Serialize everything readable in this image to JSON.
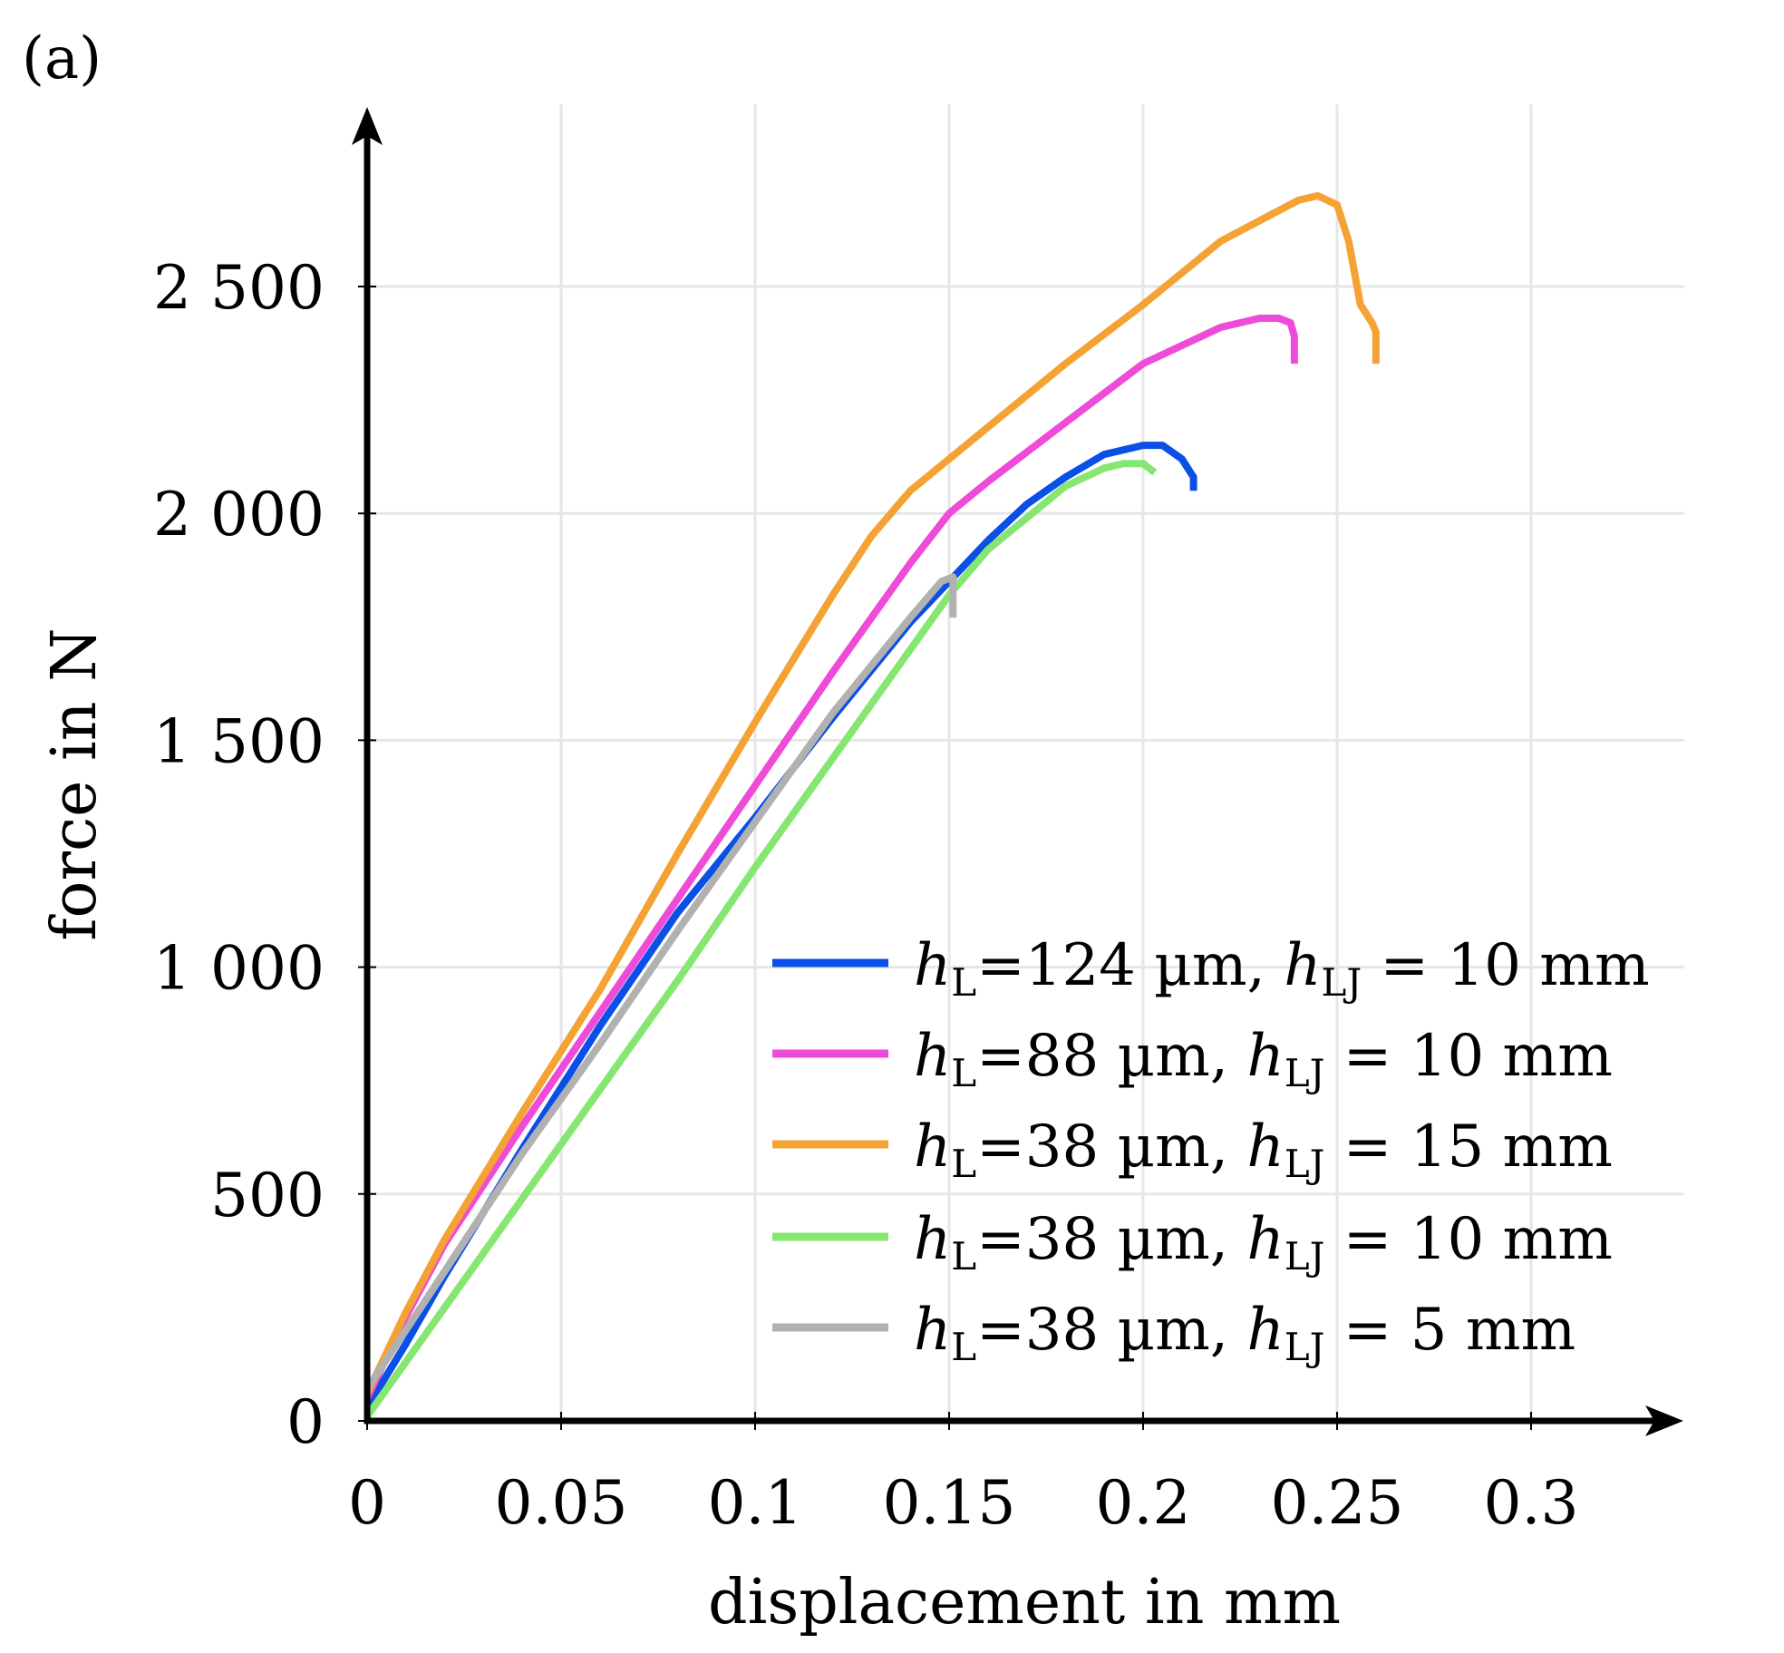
{
  "chart_data": {
    "type": "line",
    "panel_label": "(a)",
    "xlabel": "displacement in mm",
    "ylabel": "force in N",
    "xlim": [
      0,
      0.34
    ],
    "ylim": [
      0,
      2800
    ],
    "x_ticks": [
      0,
      0.05,
      0.1,
      0.15,
      0.2,
      0.25,
      0.3
    ],
    "x_tick_labels": [
      "0",
      "0.05",
      "0.1",
      "0.15",
      "0.2",
      "0.25",
      "0.3"
    ],
    "y_ticks": [
      0,
      500,
      1000,
      1500,
      2000,
      2500
    ],
    "y_tick_labels": [
      "0",
      "500",
      "1 000",
      "1 500",
      "2 000",
      "2 500"
    ],
    "grid": true,
    "legend_position": "lower-right",
    "series": [
      {
        "name": "h_L=124 µm, h_LJ = 10 mm",
        "legend": {
          "h": "h",
          "sub1": "L",
          "mid": "=124 µm, ",
          "h2": "h",
          "sub2": "LJ",
          "tail": " = 10 mm"
        },
        "color": "#0a4fe6",
        "x": [
          0,
          0.01,
          0.02,
          0.04,
          0.06,
          0.08,
          0.1,
          0.12,
          0.14,
          0.15,
          0.16,
          0.17,
          0.18,
          0.19,
          0.2,
          0.205,
          0.21,
          0.213,
          0.213
        ],
        "y": [
          30,
          170,
          320,
          600,
          870,
          1120,
          1330,
          1550,
          1760,
          1850,
          1940,
          2020,
          2080,
          2130,
          2150,
          2150,
          2120,
          2080,
          2050
        ]
      },
      {
        "name": "h_L=88 µm, h_LJ = 10 mm",
        "legend": {
          "h": "h",
          "sub1": "L",
          "mid": "=88 µm, ",
          "h2": "h",
          "sub2": "LJ",
          "tail": " = 10 mm"
        },
        "color": "#ee4bd8",
        "x": [
          0,
          0.01,
          0.02,
          0.04,
          0.06,
          0.08,
          0.1,
          0.12,
          0.14,
          0.15,
          0.16,
          0.18,
          0.2,
          0.22,
          0.23,
          0.235,
          0.238,
          0.239,
          0.239
        ],
        "y": [
          50,
          230,
          390,
          650,
          900,
          1150,
          1400,
          1650,
          1890,
          2000,
          2070,
          2200,
          2330,
          2410,
          2430,
          2430,
          2420,
          2390,
          2330
        ]
      },
      {
        "name": "h_L=38 µm, h_LJ = 15 mm",
        "legend": {
          "h": "h",
          "sub1": "L",
          "mid": "=38 µm, ",
          "h2": "h",
          "sub2": "LJ",
          "tail": " = 15 mm"
        },
        "color": "#f4a233",
        "x": [
          0,
          0.01,
          0.02,
          0.04,
          0.06,
          0.08,
          0.1,
          0.12,
          0.13,
          0.14,
          0.15,
          0.16,
          0.18,
          0.2,
          0.22,
          0.24,
          0.245,
          0.25,
          0.253,
          0.256,
          0.259,
          0.26,
          0.26
        ],
        "y": [
          60,
          240,
          400,
          680,
          950,
          1250,
          1540,
          1820,
          1950,
          2050,
          2120,
          2190,
          2330,
          2460,
          2600,
          2690,
          2700,
          2680,
          2600,
          2460,
          2420,
          2400,
          2330
        ]
      },
      {
        "name": "h_L=38 µm, h_LJ = 10 mm",
        "legend": {
          "h": "h",
          "sub1": "L",
          "mid": "=38 µm, ",
          "h2": "h",
          "sub2": "LJ",
          "tail": " = 10 mm"
        },
        "color": "#85e672",
        "x": [
          0,
          0.02,
          0.04,
          0.06,
          0.08,
          0.1,
          0.12,
          0.14,
          0.15,
          0.16,
          0.18,
          0.19,
          0.195,
          0.2,
          0.203
        ],
        "y": [
          10,
          250,
          490,
          730,
          970,
          1220,
          1460,
          1700,
          1820,
          1920,
          2060,
          2100,
          2110,
          2110,
          2090
        ]
      },
      {
        "name": "h_L=38 µm, h_LJ = 5 mm",
        "legend": {
          "h": "h",
          "sub1": "L",
          "mid": "=38 µm, ",
          "h2": "h",
          "sub2": "LJ",
          "tail": " = 5 mm"
        },
        "color": "#b1b1b1",
        "x": [
          0,
          0.01,
          0.02,
          0.04,
          0.06,
          0.08,
          0.1,
          0.12,
          0.14,
          0.148,
          0.151,
          0.151
        ],
        "y": [
          70,
          200,
          330,
          590,
          830,
          1080,
          1320,
          1560,
          1770,
          1850,
          1860,
          1770
        ]
      }
    ]
  }
}
